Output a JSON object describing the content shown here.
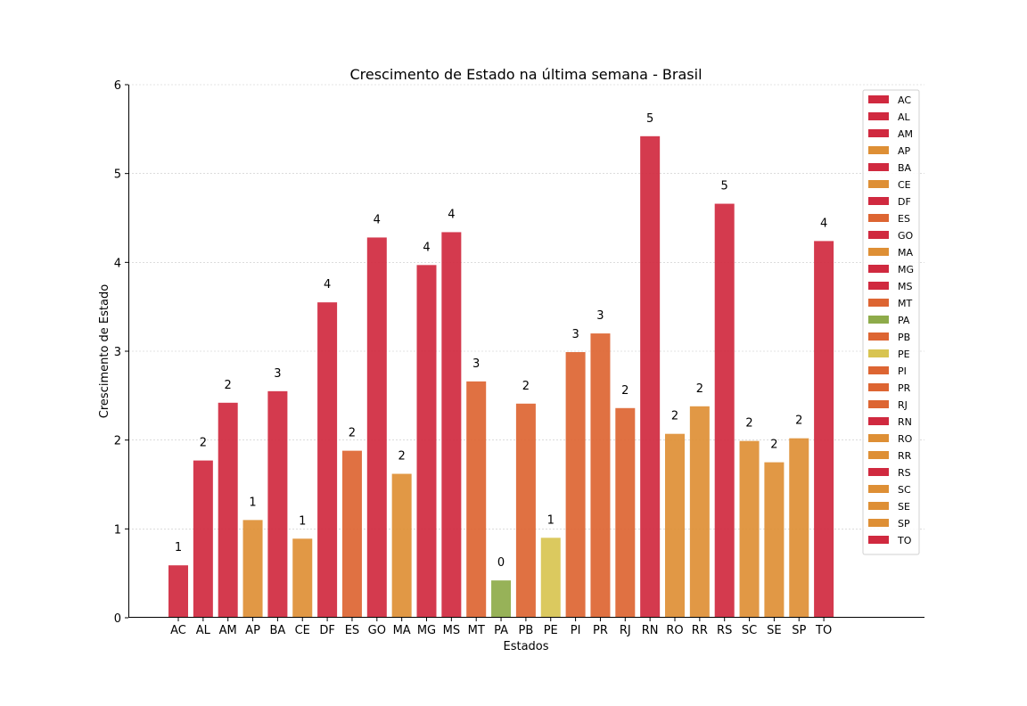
{
  "chart_data": {
    "type": "bar",
    "title": "Crescimento de Estado na última semana - Brasil",
    "xlabel": "Estados",
    "ylabel": "Crescimento de Estado",
    "ylim": [
      0,
      6
    ],
    "yticks": [
      0,
      1,
      2,
      3,
      4,
      5,
      6
    ],
    "grid": "horizontal",
    "legend_position": "top-right",
    "categories": [
      "AC",
      "AL",
      "AM",
      "AP",
      "BA",
      "CE",
      "DF",
      "ES",
      "GO",
      "MA",
      "MG",
      "MS",
      "MT",
      "PA",
      "PB",
      "PE",
      "PI",
      "PR",
      "RJ",
      "RN",
      "RO",
      "RR",
      "RS",
      "SC",
      "SE",
      "SP",
      "TO"
    ],
    "values": [
      0.59,
      1.77,
      2.42,
      1.1,
      2.55,
      0.89,
      3.55,
      1.88,
      4.28,
      1.62,
      3.97,
      4.34,
      2.66,
      0.42,
      2.41,
      0.9,
      2.99,
      3.2,
      2.36,
      5.42,
      2.07,
      2.38,
      4.66,
      1.99,
      1.75,
      2.02,
      4.24
    ],
    "data_labels": [
      "1",
      "2",
      "2",
      "1",
      "3",
      "1",
      "4",
      "2",
      "4",
      "2",
      "4",
      "4",
      "3",
      "0",
      "2",
      "1",
      "3",
      "3",
      "2",
      "5",
      "2",
      "2",
      "5",
      "2",
      "2",
      "2",
      "4"
    ],
    "colors": [
      "#d0293f",
      "#d0293f",
      "#d0293f",
      "#de8f35",
      "#d0293f",
      "#de8f35",
      "#d0293f",
      "#dd6532",
      "#d0293f",
      "#de8f35",
      "#d0293f",
      "#d0293f",
      "#dd6532",
      "#8eab4a",
      "#dd6532",
      "#d8c451",
      "#dd6532",
      "#dd6532",
      "#dd6532",
      "#d0293f",
      "#de8f35",
      "#de8f35",
      "#d0293f",
      "#de8f35",
      "#de8f35",
      "#de8f35",
      "#d0293f"
    ]
  }
}
